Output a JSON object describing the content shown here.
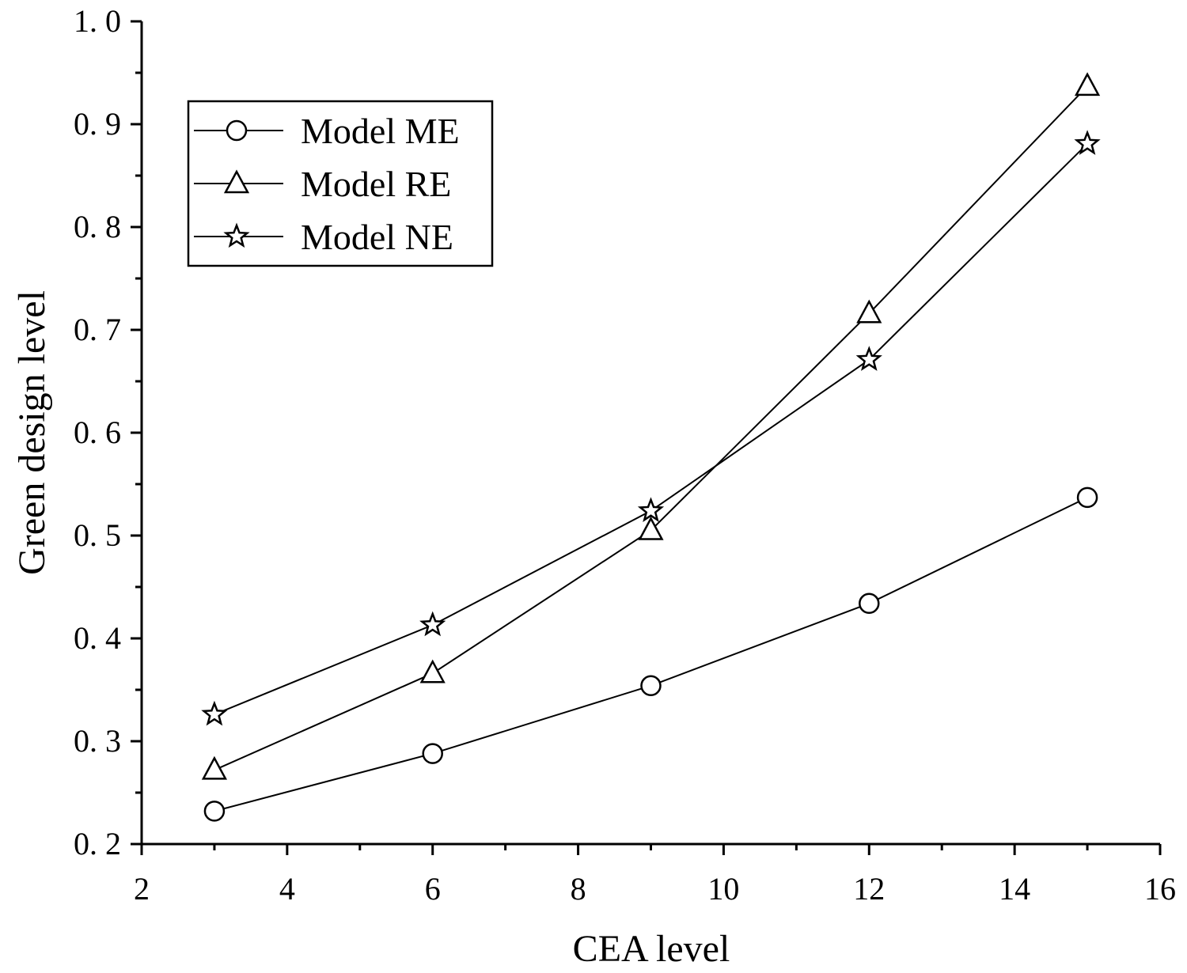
{
  "chart_data": {
    "type": "line",
    "title": "",
    "xlabel": "CEA level",
    "ylabel": "Green design level",
    "xlim": [
      2,
      16
    ],
    "ylim": [
      0.2,
      1.0
    ],
    "x_ticks": [
      2,
      4,
      6,
      8,
      10,
      12,
      14,
      16
    ],
    "x_tick_labels": [
      "2",
      "4",
      "6",
      "8",
      "10",
      "12",
      "14",
      "16"
    ],
    "y_ticks": [
      0.2,
      0.3,
      0.4,
      0.5,
      0.6,
      0.7,
      0.8,
      0.9,
      1.0
    ],
    "y_tick_labels": [
      "0. 2",
      "0. 3",
      "0. 4",
      "0. 5",
      "0. 6",
      "0. 7",
      "0. 8",
      "0. 9",
      "1. 0"
    ],
    "grid": false,
    "legend_position": "top-left",
    "x": [
      3,
      6,
      9,
      12,
      15
    ],
    "series": [
      {
        "name": "Model ME",
        "marker": "circle",
        "values": [
          0.232,
          0.288,
          0.354,
          0.434,
          0.537
        ]
      },
      {
        "name": "Model RE",
        "marker": "triangle",
        "values": [
          0.272,
          0.366,
          0.505,
          0.716,
          0.937
        ]
      },
      {
        "name": "Model NE",
        "marker": "star",
        "values": [
          0.326,
          0.413,
          0.524,
          0.671,
          0.881
        ]
      }
    ]
  }
}
